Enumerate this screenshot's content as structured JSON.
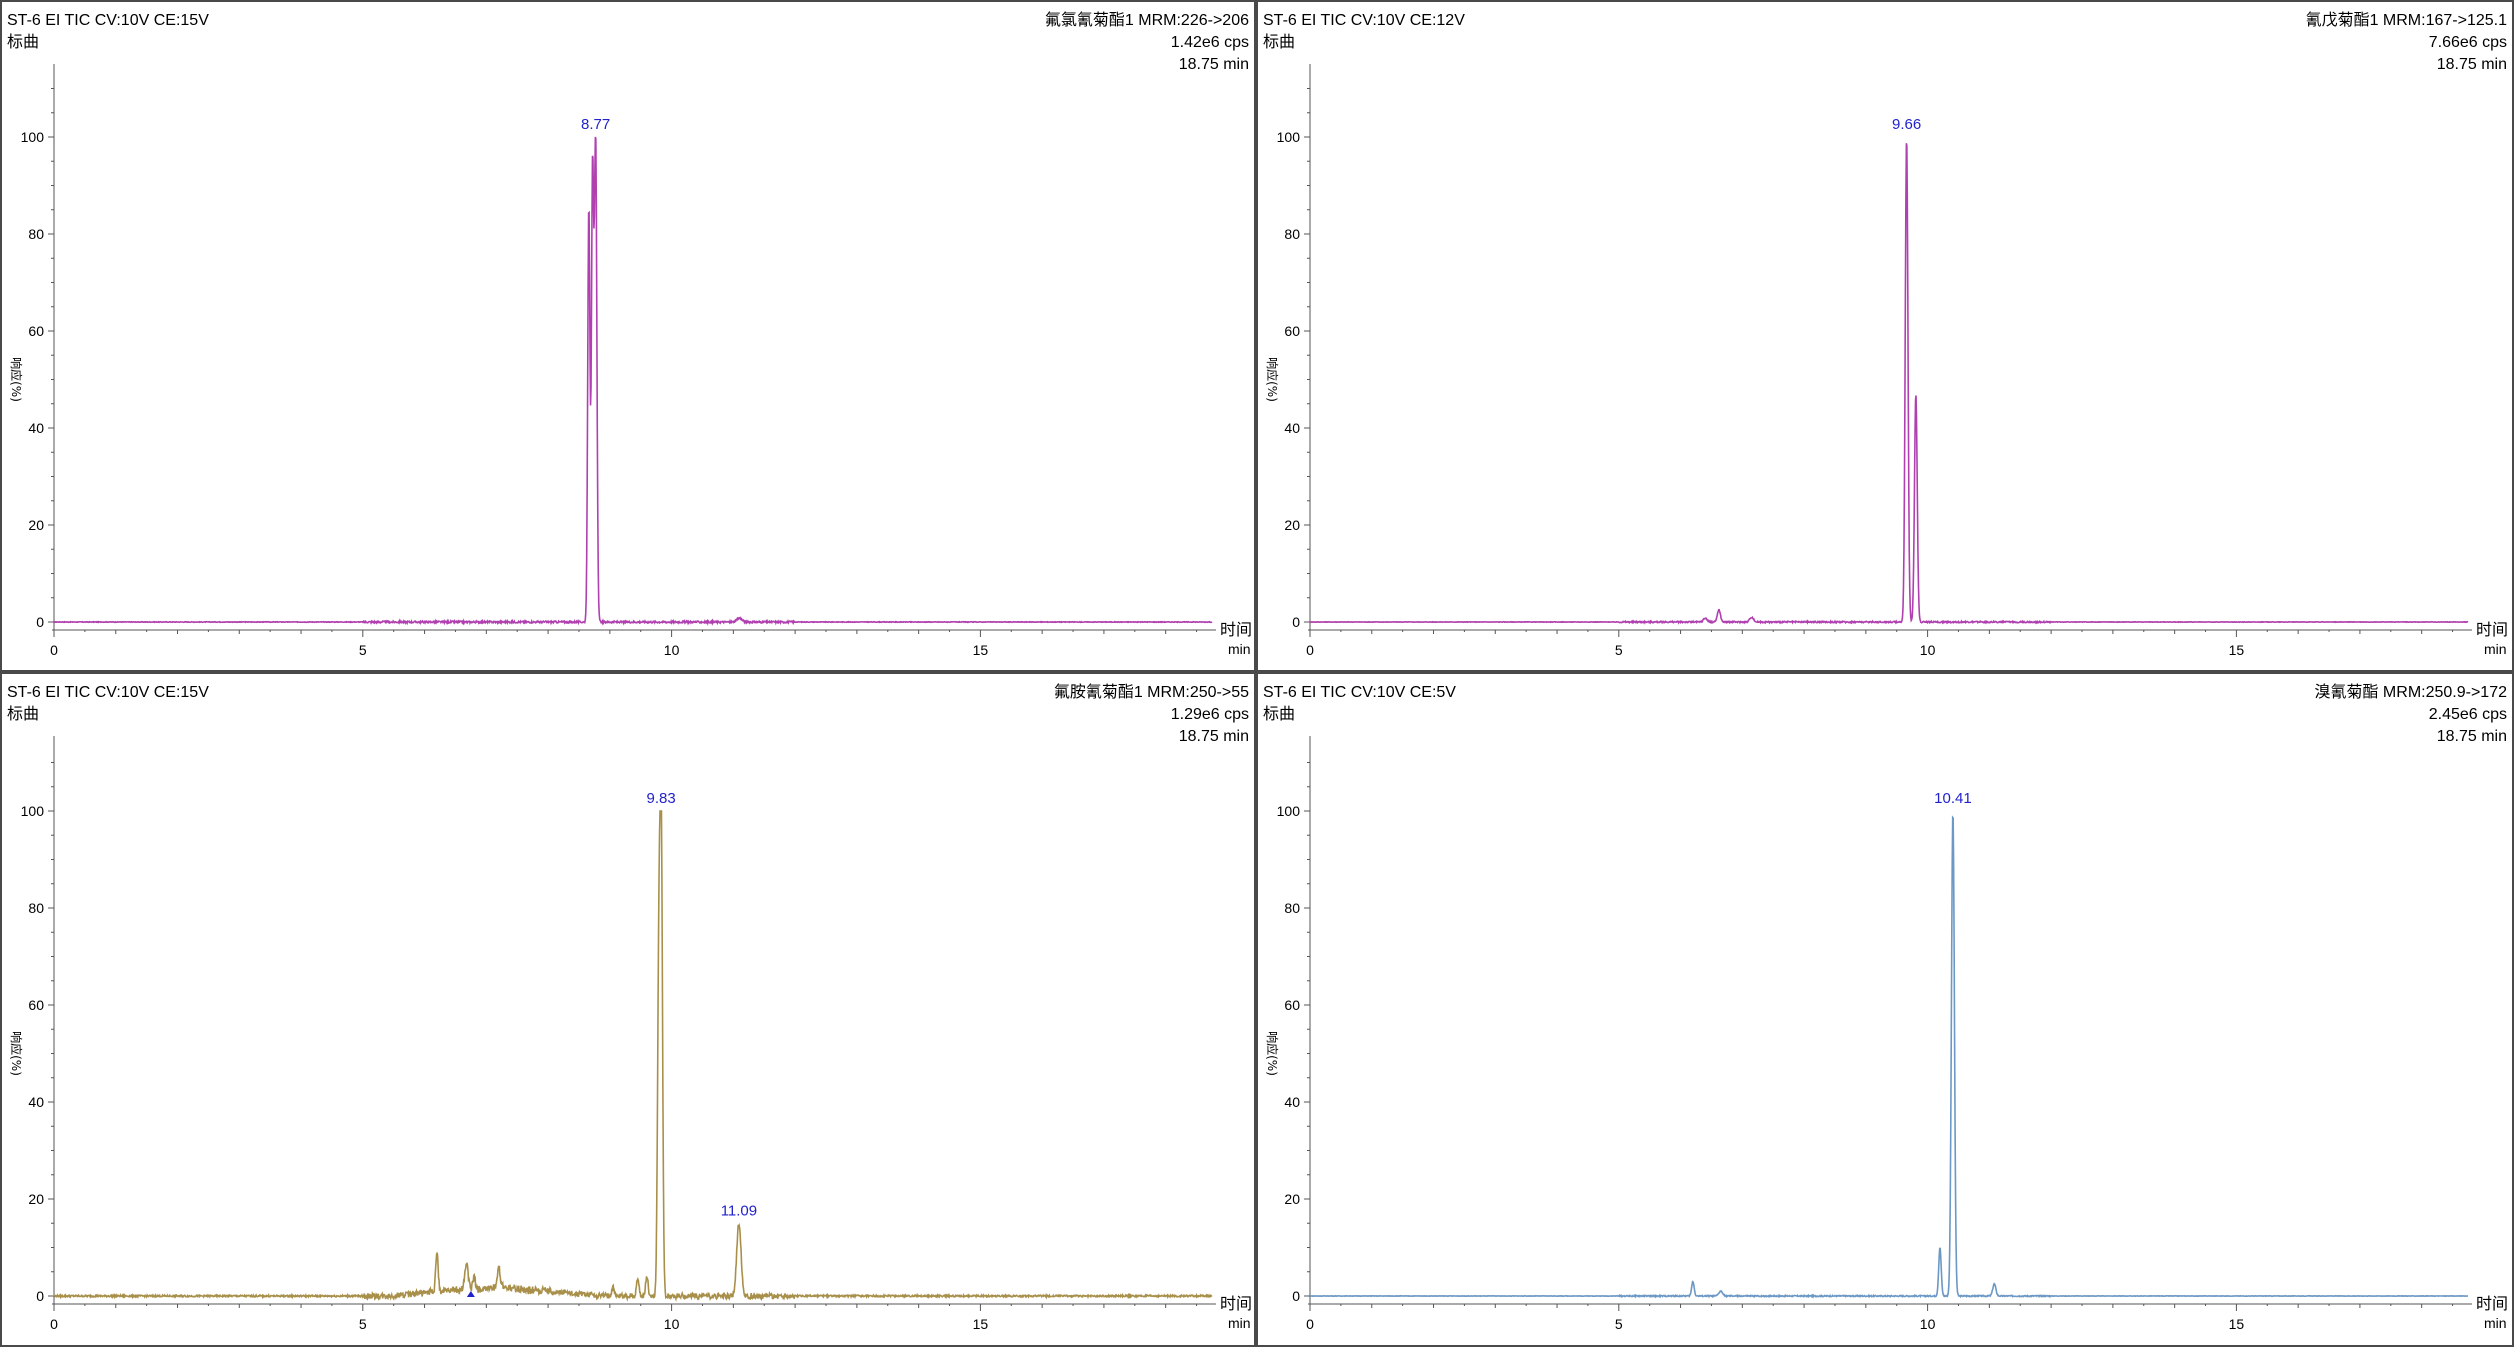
{
  "chart_data": [
    {
      "type": "line",
      "header_left": [
        "ST-6 EI TIC CV:10V CE:15V",
        "标曲"
      ],
      "header_right": [
        "氟氯氰菊酯1 MRM:226->206",
        "1.42e6 cps",
        "18.75 min"
      ],
      "ylabel": "响应(%)",
      "xlabel": "时间",
      "xunit": "min",
      "xlim": [
        0,
        18.75
      ],
      "ylim": [
        0,
        100
      ],
      "xticks": [
        0,
        5,
        10,
        15
      ],
      "yticks": [
        0,
        20,
        40,
        60,
        80,
        100
      ],
      "color": "#b040b0",
      "baseline_noise": 0.4,
      "peaks": [
        {
          "x": 8.66,
          "y": 86,
          "w": 0.018
        },
        {
          "x": 8.72,
          "y": 92,
          "w": 0.018
        },
        {
          "x": 8.77,
          "y": 100,
          "w": 0.02
        },
        {
          "x": 11.1,
          "y": 0.8,
          "w": 0.04
        }
      ],
      "peak_labels": [
        {
          "x": 8.77,
          "y": 100,
          "text": "8.77"
        }
      ]
    },
    {
      "type": "line",
      "header_left": [
        "ST-6 EI TIC CV:10V CE:12V",
        "标曲"
      ],
      "header_right": [
        "氰戊菊酯1 MRM:167->125.1",
        "7.66e6 cps",
        "18.75 min"
      ],
      "ylabel": "响应(%)",
      "xlabel": "时间",
      "xunit": "min",
      "xlim": [
        0,
        18.75
      ],
      "ylim": [
        0,
        100
      ],
      "xticks": [
        0,
        5,
        10,
        15
      ],
      "yticks": [
        0,
        20,
        40,
        60,
        80,
        100
      ],
      "color": "#b040b0",
      "baseline_noise": 0.3,
      "peaks": [
        {
          "x": 6.4,
          "y": 0.8,
          "w": 0.03
        },
        {
          "x": 6.62,
          "y": 2.5,
          "w": 0.025
        },
        {
          "x": 7.15,
          "y": 1,
          "w": 0.03
        },
        {
          "x": 9.66,
          "y": 100,
          "w": 0.022
        },
        {
          "x": 9.81,
          "y": 47,
          "w": 0.022
        }
      ],
      "peak_labels": [
        {
          "x": 9.66,
          "y": 100,
          "text": "9.66"
        }
      ]
    },
    {
      "type": "line",
      "header_left": [
        "ST-6 EI TIC CV:10V CE:15V",
        "标曲"
      ],
      "header_right": [
        "氟胺氰菊酯1 MRM:250->55",
        "1.29e6 cps",
        "18.75 min"
      ],
      "ylabel": "响应(%)",
      "xlabel": "时间",
      "xunit": "min",
      "xlim": [
        0,
        18.75
      ],
      "ylim": [
        0,
        100
      ],
      "xticks": [
        0,
        5,
        10,
        15
      ],
      "yticks": [
        0,
        20,
        40,
        60,
        80,
        100
      ],
      "color": "#a8904a",
      "baseline_noise": 1.2,
      "hump": {
        "from": 5.5,
        "to": 8.8,
        "y": 1.5
      },
      "peaks": [
        {
          "x": 6.2,
          "y": 8,
          "w": 0.02
        },
        {
          "x": 6.68,
          "y": 5.5,
          "w": 0.025
        },
        {
          "x": 6.8,
          "y": 2.5,
          "w": 0.02
        },
        {
          "x": 7.2,
          "y": 4.5,
          "w": 0.025
        },
        {
          "x": 9.05,
          "y": 2,
          "w": 0.02
        },
        {
          "x": 9.45,
          "y": 3.5,
          "w": 0.02
        },
        {
          "x": 9.6,
          "y": 4,
          "w": 0.02
        },
        {
          "x": 9.79,
          "y": 58,
          "w": 0.02
        },
        {
          "x": 9.83,
          "y": 100,
          "w": 0.022
        },
        {
          "x": 11.09,
          "y": 15,
          "w": 0.035
        }
      ],
      "peak_labels": [
        {
          "x": 9.83,
          "y": 100,
          "text": "9.83"
        },
        {
          "x": 11.09,
          "y": 15,
          "text": "11.09"
        }
      ],
      "markers": [
        {
          "x": 6.75,
          "y": 0
        }
      ]
    },
    {
      "type": "line",
      "header_left": [
        "ST-6 EI TIC CV:10V CE:5V",
        "标曲"
      ],
      "header_right": [
        "溴氰菊酯 MRM:250.9->172",
        "2.45e6 cps",
        "18.75 min"
      ],
      "ylabel": "响应(%)",
      "xlabel": "时间",
      "xunit": "min",
      "xlim": [
        0,
        18.75
      ],
      "ylim": [
        0,
        100
      ],
      "xticks": [
        0,
        5,
        10,
        15
      ],
      "yticks": [
        0,
        20,
        40,
        60,
        80,
        100
      ],
      "color": "#6b98c4",
      "baseline_noise": 0.25,
      "peaks": [
        {
          "x": 6.2,
          "y": 3,
          "w": 0.02
        },
        {
          "x": 6.65,
          "y": 1,
          "w": 0.03
        },
        {
          "x": 10.2,
          "y": 10,
          "w": 0.02
        },
        {
          "x": 10.41,
          "y": 100,
          "w": 0.024
        },
        {
          "x": 11.08,
          "y": 2.5,
          "w": 0.025
        }
      ],
      "peak_labels": [
        {
          "x": 10.41,
          "y": 100,
          "text": "10.41"
        }
      ]
    }
  ]
}
